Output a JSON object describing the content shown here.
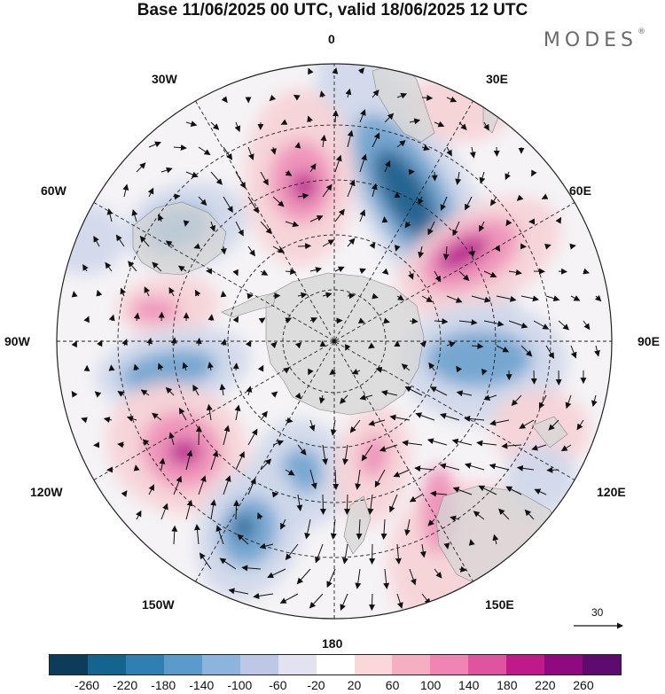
{
  "header": {
    "title": "Base 11/06/2025 00 UTC, valid 18/06/2025 12 UTC",
    "brand": "MODES",
    "brand_mark": "®"
  },
  "map": {
    "projection": "south-polar-stereographic",
    "longitude_labels": [
      "0",
      "30E",
      "60E",
      "90E",
      "120E",
      "150E",
      "180",
      "150W",
      "120W",
      "90W",
      "60W",
      "30W"
    ],
    "wind_reference_label": "30",
    "anomaly_colors": {
      "strong_negative": "#1f5f8b",
      "negative": "#6fa3cf",
      "weak_negative": "#cfd8ea",
      "weak_positive": "#f6d2d6",
      "positive": "#ef8fb8",
      "strong_positive": "#b41a8c",
      "land_gray": "#d6d6d6"
    }
  },
  "colorbar": {
    "colors": [
      "#0c3c5a",
      "#15648f",
      "#2f7fb2",
      "#5a9bcb",
      "#8cb4dd",
      "#bcc8e5",
      "#e2e2f0",
      "#ffffff",
      "#fbd7da",
      "#f6aec3",
      "#ef85b3",
      "#e0539e",
      "#c0198a",
      "#8f0a80",
      "#5e0b6f"
    ],
    "tick_labels": [
      "-260",
      "-220",
      "-180",
      "-140",
      "-100",
      "-60",
      "-20",
      "20",
      "60",
      "100",
      "140",
      "180",
      "220",
      "260"
    ]
  }
}
